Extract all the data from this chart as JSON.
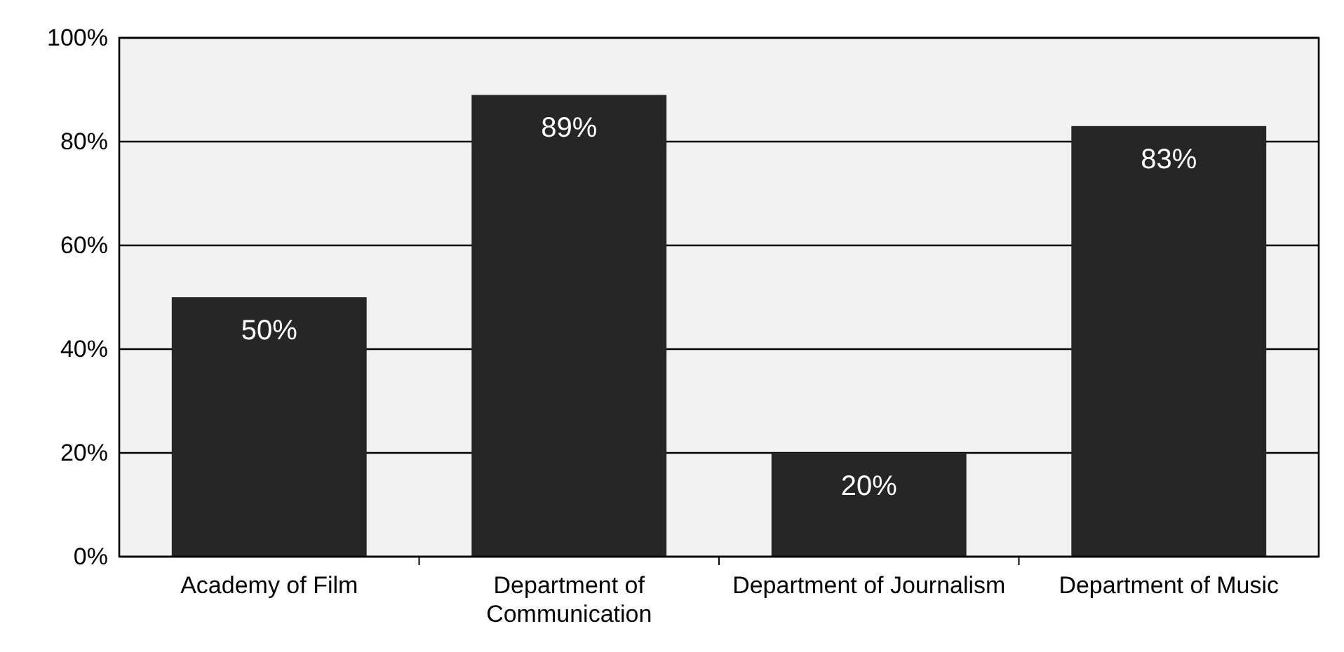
{
  "chart_data": {
    "type": "bar",
    "categories": [
      "Academy of Film",
      "Department of Communication",
      "Department of Journalism",
      "Department of Music"
    ],
    "values": [
      50,
      89,
      20,
      83
    ],
    "value_labels": [
      "50%",
      "89%",
      "20%",
      "83%"
    ],
    "color": "#262626",
    "ylim": [
      0,
      100
    ],
    "yticks": [
      {
        "value": 0,
        "label": "0%"
      },
      {
        "value": 20,
        "label": "20%"
      },
      {
        "value": 40,
        "label": "40%"
      },
      {
        "value": 60,
        "label": "60%"
      },
      {
        "value": 80,
        "label": "80%"
      },
      {
        "value": 100,
        "label": "100%"
      }
    ],
    "grid": "y"
  }
}
